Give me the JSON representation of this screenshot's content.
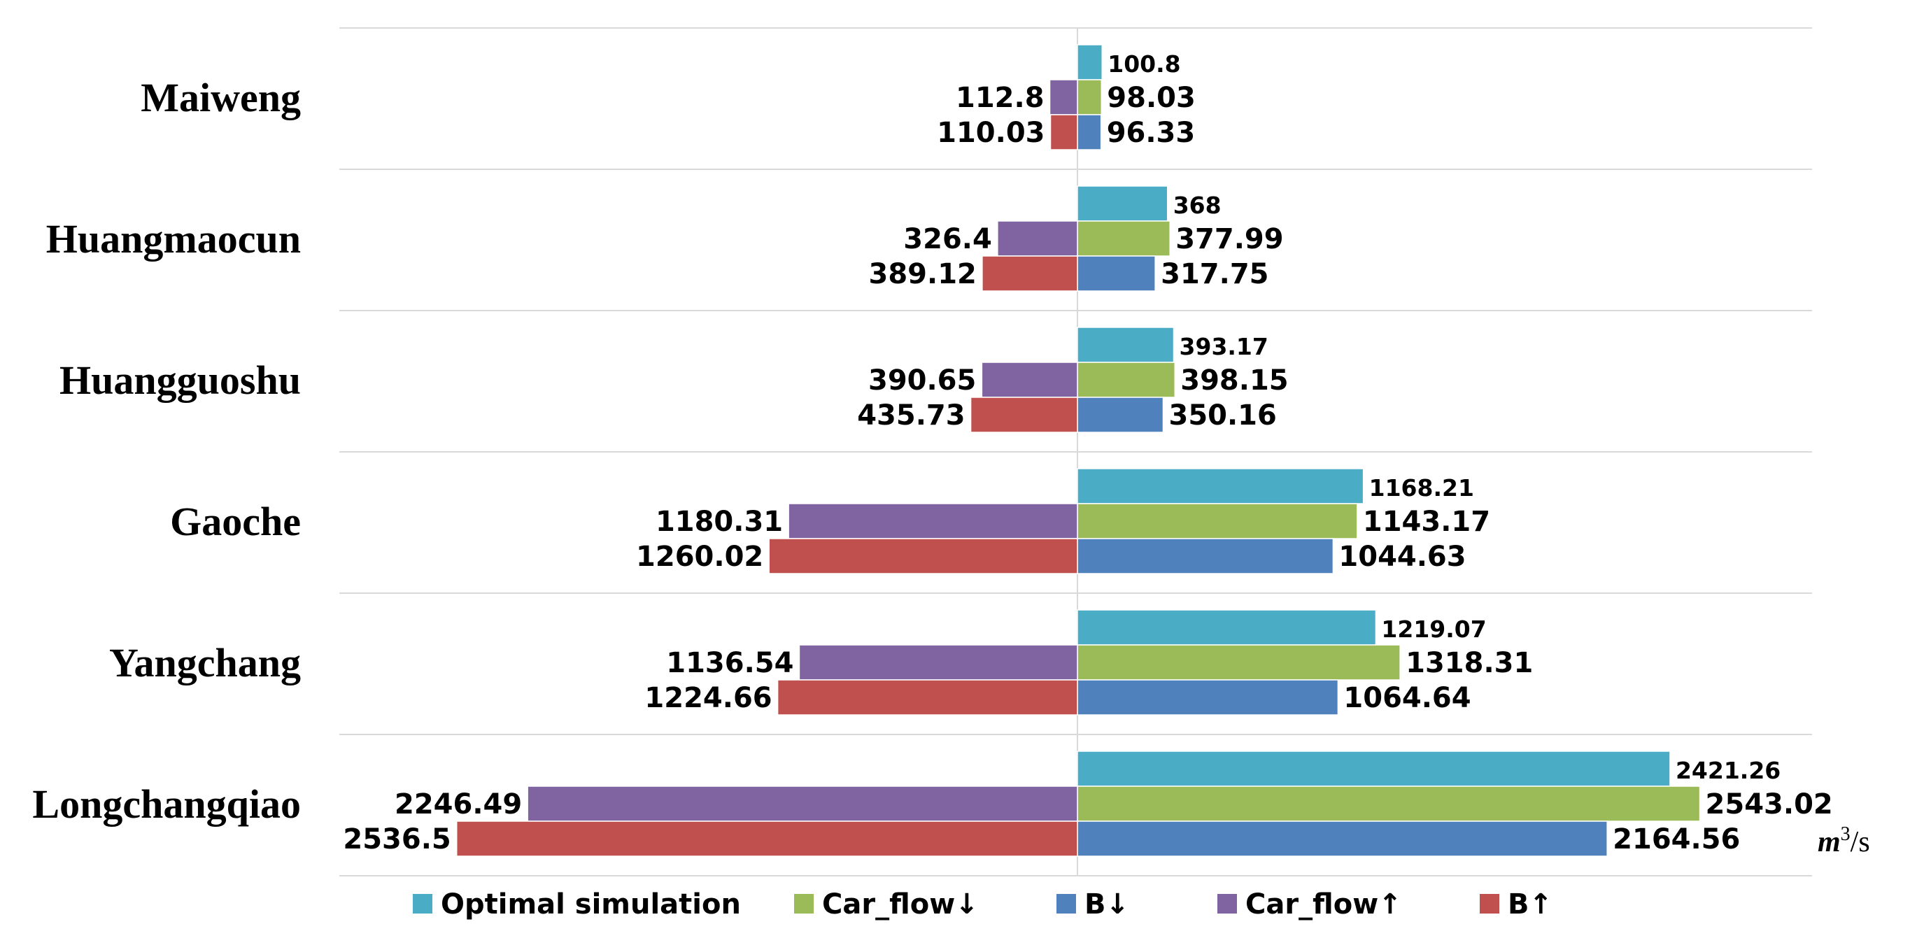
{
  "chart_data": {
    "type": "bar",
    "orientation": "horizontal-diverging",
    "categories": [
      "Maiweng",
      "Huangmaocun",
      "Huangguoshu",
      "Gaoche",
      "Yangchang",
      "Longchangqiao"
    ],
    "series": [
      {
        "name": "Optimal simulation",
        "side": "right",
        "color": "#4bacc6",
        "values": [
          100.8,
          368,
          393.17,
          1168.21,
          1219.07,
          2421.26
        ],
        "labels": [
          "100.8",
          "368",
          "393.17",
          "1168.21",
          "1219.07",
          "2421.26"
        ]
      },
      {
        "name": "Car_flow↓",
        "side": "right",
        "color": "#9bbb59",
        "values": [
          98.03,
          377.99,
          398.15,
          1143.17,
          1318.31,
          2543.02
        ],
        "labels": [
          "98.03",
          "377.99",
          "398.15",
          "1143.17",
          "1318.31",
          "2543.02"
        ]
      },
      {
        "name": "B↓",
        "side": "right",
        "color": "#4f81bd",
        "values": [
          96.33,
          317.75,
          350.16,
          1044.63,
          1064.64,
          2164.56
        ],
        "labels": [
          "96.33",
          "317.75",
          "350.16",
          "1044.63",
          "1064.64",
          "2164.56"
        ]
      },
      {
        "name": "Car_flow↑",
        "side": "left",
        "color": "#8064a2",
        "values": [
          112.8,
          326.4,
          390.65,
          1180.31,
          1136.54,
          2246.49
        ],
        "labels": [
          "112.8",
          "326.4",
          "390.65",
          "1180.31",
          "1136.54",
          "2246.49"
        ]
      },
      {
        "name": "B↑",
        "side": "left",
        "color": "#c0504d",
        "values": [
          110.03,
          389.12,
          435.73,
          1260.02,
          1224.66,
          2536.5
        ],
        "labels": [
          "110.03",
          "389.12",
          "435.73",
          "1260.02",
          "1224.66",
          "2536.5"
        ]
      }
    ],
    "legend": [
      "Optimal simulation",
      "Car_flow↓",
      "B↓",
      "Car_flow↑",
      "B↑"
    ],
    "legend_position": "bottom",
    "unit": {
      "base": "m",
      "exponent": "3",
      "rest": "/s"
    },
    "xlim": [
      -3000,
      3000
    ],
    "grid": "horizontal separators"
  }
}
